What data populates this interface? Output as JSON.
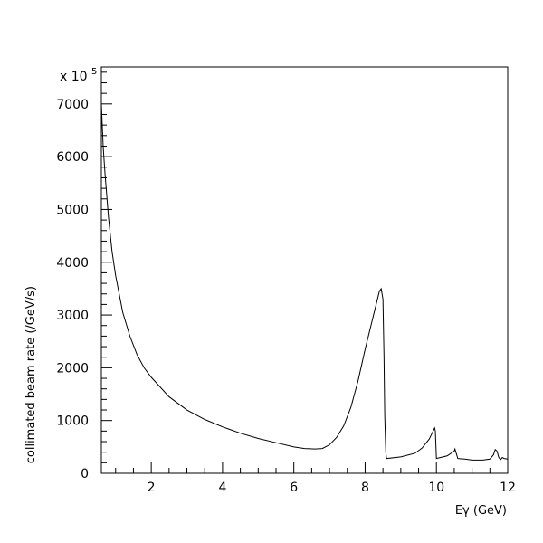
{
  "chart_data": {
    "type": "line",
    "title": "",
    "xlabel": "Eγ (GeV)",
    "ylabel": "collimated beam rate (/GeV/s)",
    "y_multiplier_label": "x 10",
    "y_multiplier_exponent": "5",
    "xlim": [
      0.6,
      12
    ],
    "ylim": [
      0,
      7700
    ],
    "x_ticks": [
      2,
      4,
      6,
      8,
      10,
      12
    ],
    "y_ticks": [
      0,
      1000,
      2000,
      3000,
      4000,
      5000,
      6000,
      7000
    ],
    "grid": false,
    "series": [
      {
        "x": [
          0.6,
          0.65,
          0.7,
          0.8,
          0.9,
          1.0,
          1.2,
          1.4,
          1.6,
          1.8,
          2.0,
          2.5,
          3.0,
          3.5,
          4.0,
          4.5,
          5.0,
          5.5,
          6.0,
          6.3,
          6.6,
          6.8,
          7.0,
          7.2,
          7.4,
          7.6,
          7.8,
          8.0,
          8.2,
          8.4,
          8.45,
          8.5,
          8.53,
          8.55,
          8.58,
          8.6,
          9.0,
          9.4,
          9.6,
          9.8,
          9.9,
          9.95,
          9.97,
          10.0,
          10.3,
          10.5,
          10.52,
          10.6,
          10.8,
          11.0,
          11.3,
          11.5,
          11.6,
          11.65,
          11.7,
          11.75,
          11.8,
          11.85,
          11.9,
          12.0
        ],
        "y": [
          7000,
          6200,
          5700,
          4850,
          4200,
          3750,
          3050,
          2600,
          2250,
          2000,
          1820,
          1450,
          1200,
          1020,
          880,
          760,
          660,
          580,
          500,
          470,
          460,
          470,
          540,
          680,
          900,
          1250,
          1750,
          2350,
          2900,
          3450,
          3500,
          3300,
          2200,
          1100,
          400,
          280,
          310,
          380,
          480,
          650,
          790,
          860,
          800,
          280,
          330,
          420,
          460,
          280,
          270,
          250,
          250,
          270,
          350,
          450,
          420,
          300,
          260,
          300,
          280,
          270
        ]
      }
    ]
  }
}
